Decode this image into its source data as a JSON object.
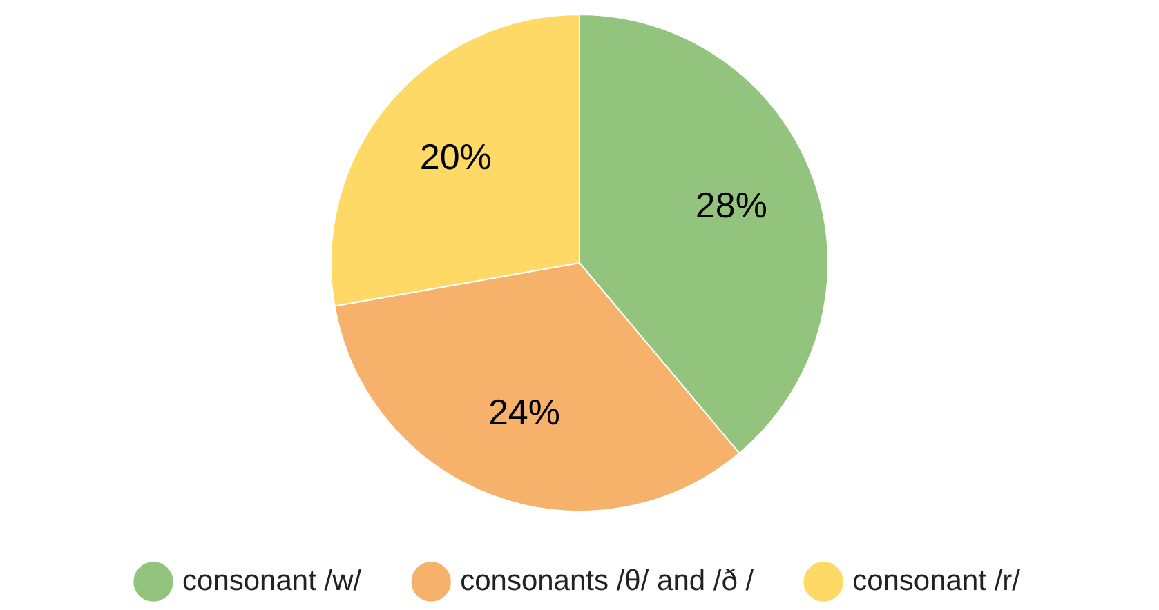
{
  "chart_data": {
    "type": "pie",
    "categories": [
      "consonant /w/",
      "consonants /θ/ and /ð /",
      "consonant /r/"
    ],
    "values": [
      28,
      24,
      20
    ],
    "value_labels": [
      "28%",
      "24%",
      "20%"
    ],
    "colors": [
      "#93c47d",
      "#f6b26b",
      "#ffd966"
    ],
    "legend": "bottom"
  }
}
